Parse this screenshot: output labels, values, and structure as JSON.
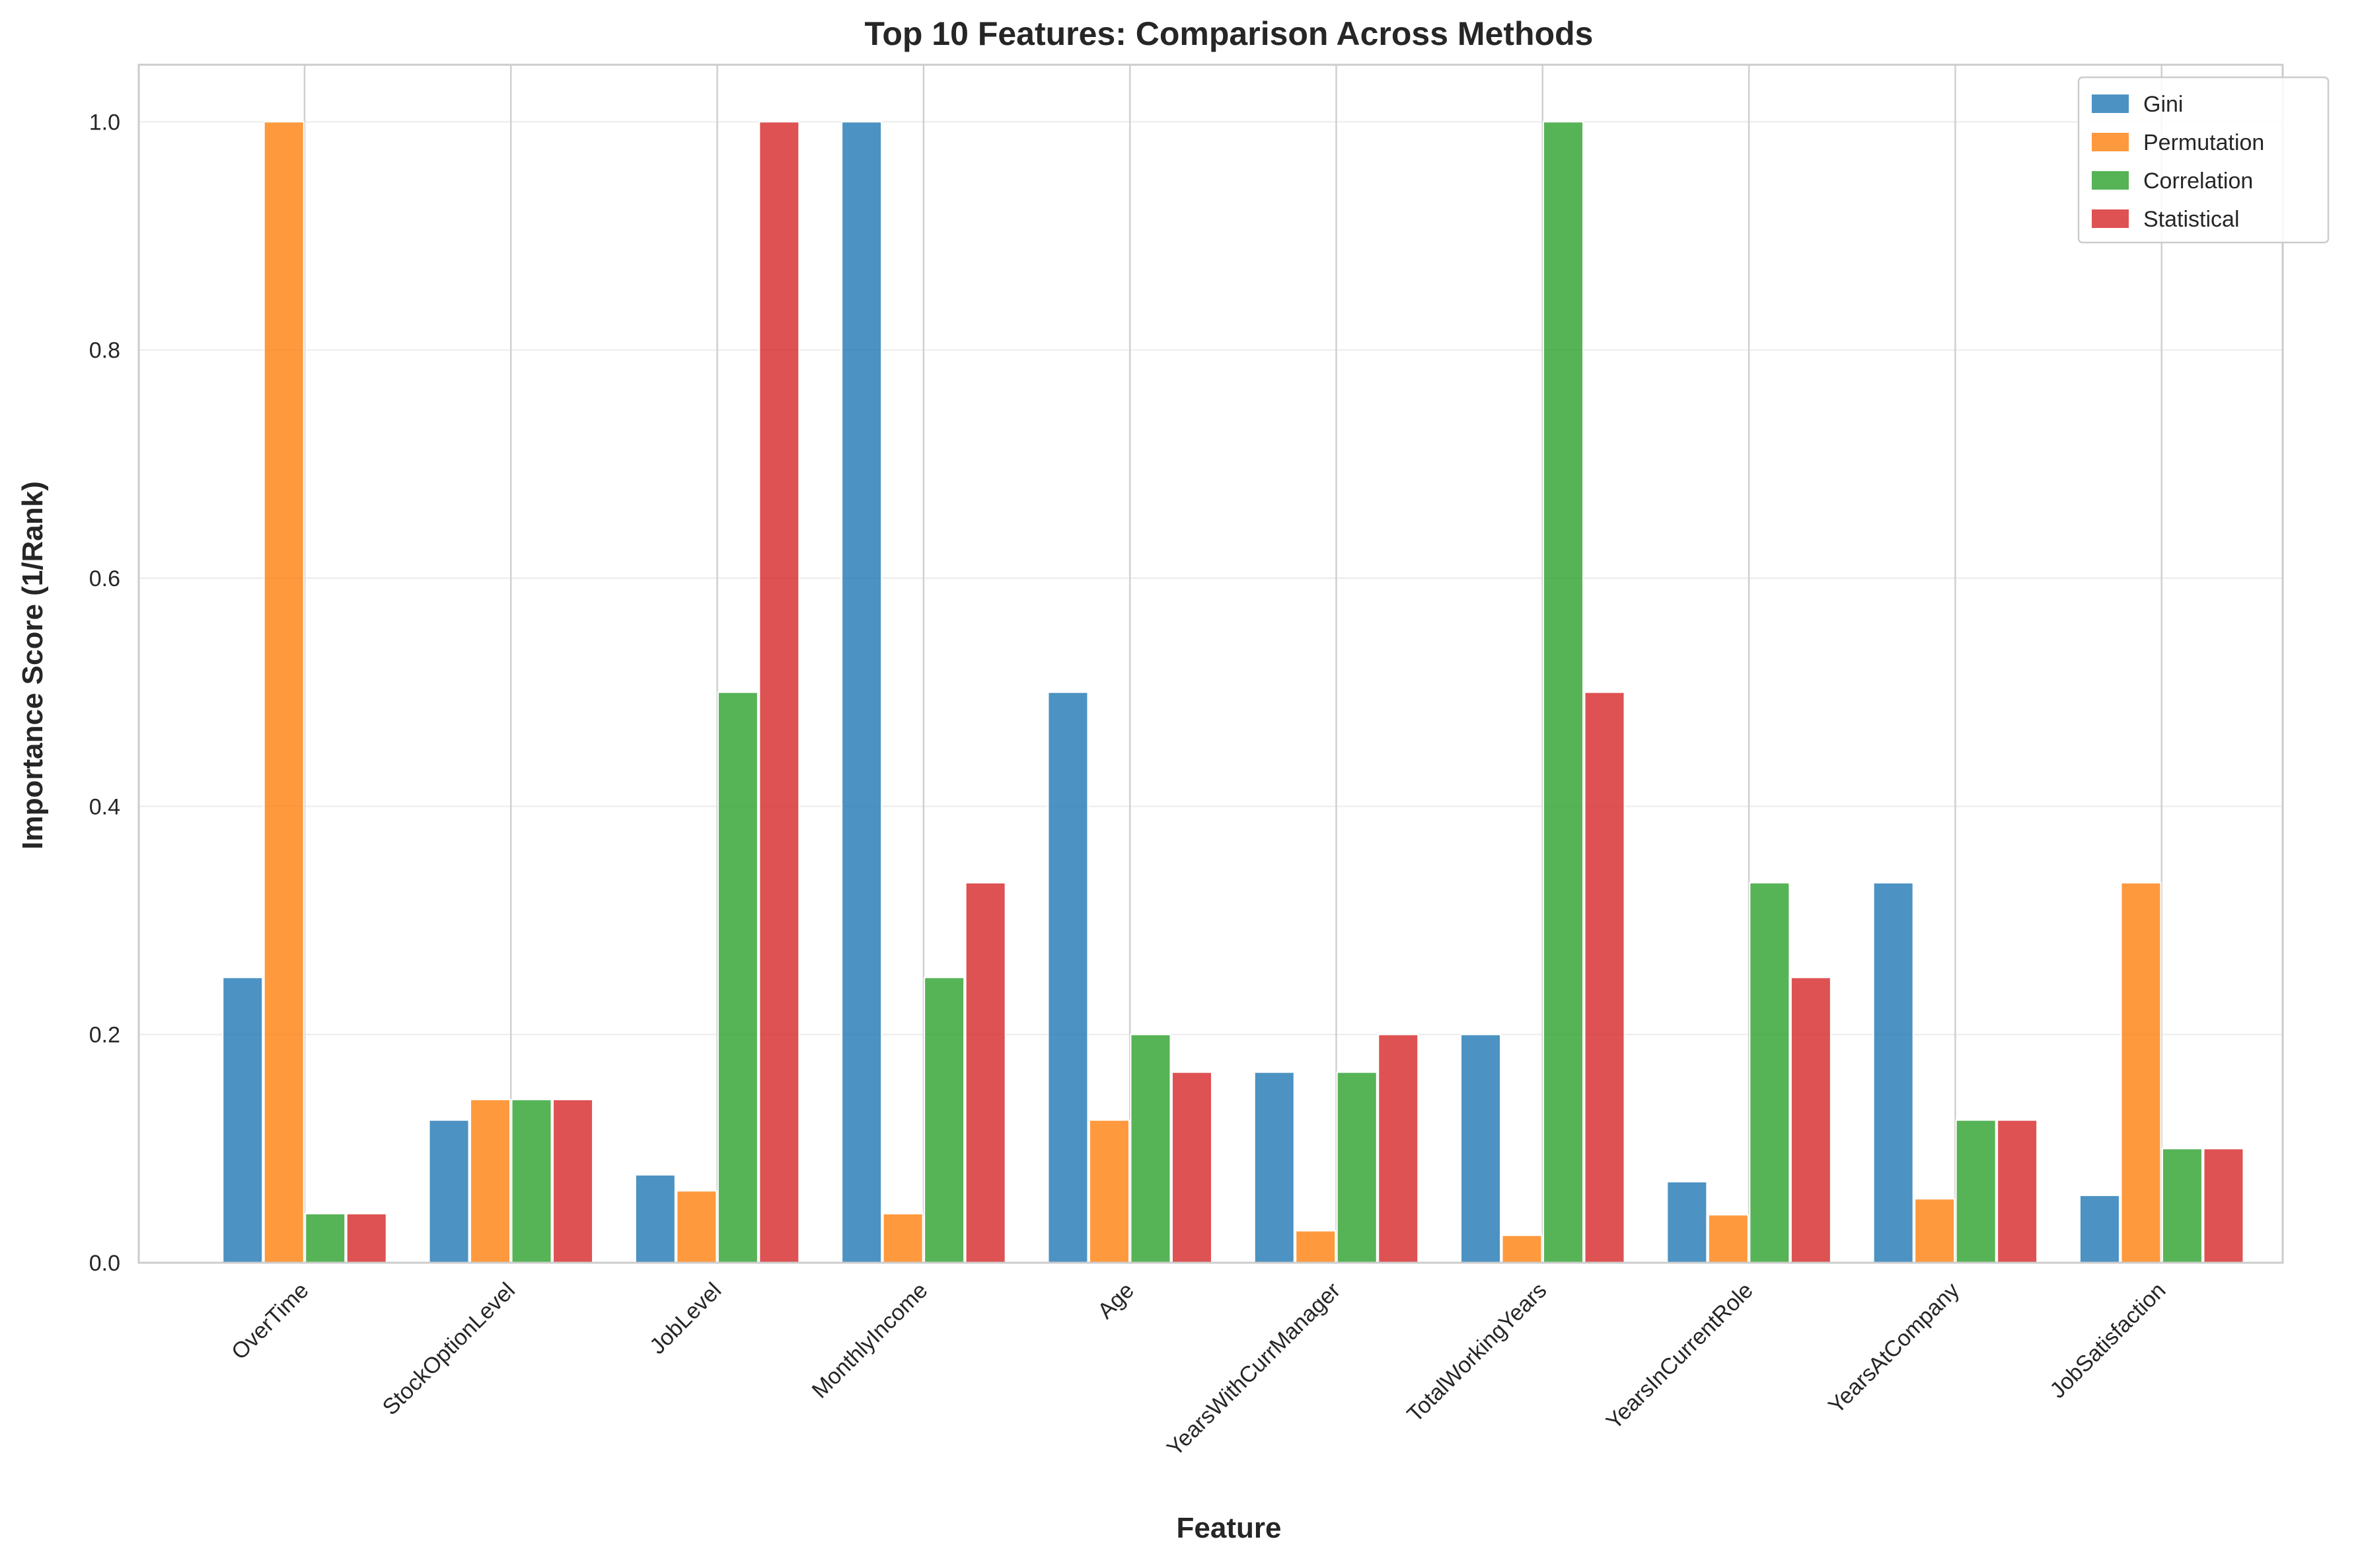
{
  "chart_data": {
    "type": "bar",
    "title": "Top 10 Features: Comparison Across Methods",
    "xlabel": "Feature",
    "ylabel": "Importance Score (1/Rank)",
    "ylim": [
      0,
      1.05
    ],
    "yticks": [
      "0.0",
      "0.2",
      "0.4",
      "0.6",
      "0.8",
      "1.0"
    ],
    "grid": true,
    "legend_position": "top-right",
    "categories": [
      "OverTime",
      "StockOptionLevel",
      "JobLevel",
      "MonthlyIncome",
      "Age",
      "YearsWithCurrManager",
      "TotalWorkingYears",
      "YearsInCurrentRole",
      "YearsAtCompany",
      "JobSatisfaction"
    ],
    "series": [
      {
        "name": "Gini",
        "color": "#1f77b4",
        "values": [
          0.25,
          0.125,
          0.077,
          1.0,
          0.5,
          0.167,
          0.2,
          0.071,
          0.333,
          0.059
        ]
      },
      {
        "name": "Permutation",
        "color": "#ff7f0e",
        "values": [
          1.0,
          0.143,
          0.063,
          0.043,
          0.125,
          0.028,
          0.024,
          0.042,
          0.056,
          0.333
        ]
      },
      {
        "name": "Correlation",
        "color": "#2ca02c",
        "values": [
          0.043,
          0.143,
          0.5,
          0.25,
          0.2,
          0.167,
          1.0,
          0.333,
          0.125,
          0.1
        ]
      },
      {
        "name": "Statistical",
        "color": "#d62728",
        "values": [
          0.043,
          0.143,
          1.0,
          0.333,
          0.167,
          0.2,
          0.5,
          0.25,
          0.125,
          0.1
        ]
      }
    ]
  }
}
